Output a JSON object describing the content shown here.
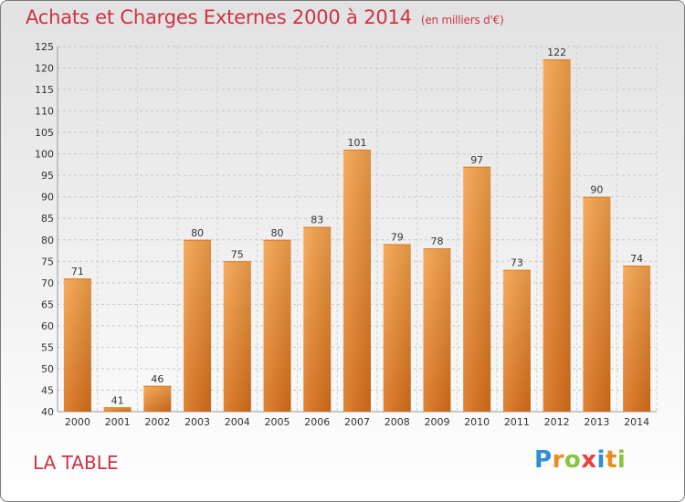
{
  "chart_data": {
    "type": "bar",
    "title": "Achats et Charges Externes 2000 à 2014",
    "subtitle": "(en milliers d'€)",
    "categories": [
      "2000",
      "2001",
      "2002",
      "2003",
      "2004",
      "2005",
      "2006",
      "2007",
      "2008",
      "2009",
      "2010",
      "2011",
      "2012",
      "2013",
      "2014"
    ],
    "values": [
      71,
      41,
      46,
      80,
      75,
      80,
      83,
      101,
      79,
      78,
      97,
      73,
      122,
      90,
      74
    ],
    "ylim": [
      40,
      125
    ],
    "yticks": [
      40,
      45,
      50,
      55,
      60,
      65,
      70,
      75,
      80,
      85,
      90,
      95,
      100,
      105,
      110,
      115,
      120,
      125
    ],
    "grid": true,
    "bar_color": "#f28c28"
  },
  "commune": "LA TABLE",
  "logo": {
    "letters": [
      "P",
      "r",
      "o",
      "x",
      "i",
      "t",
      "i"
    ]
  }
}
